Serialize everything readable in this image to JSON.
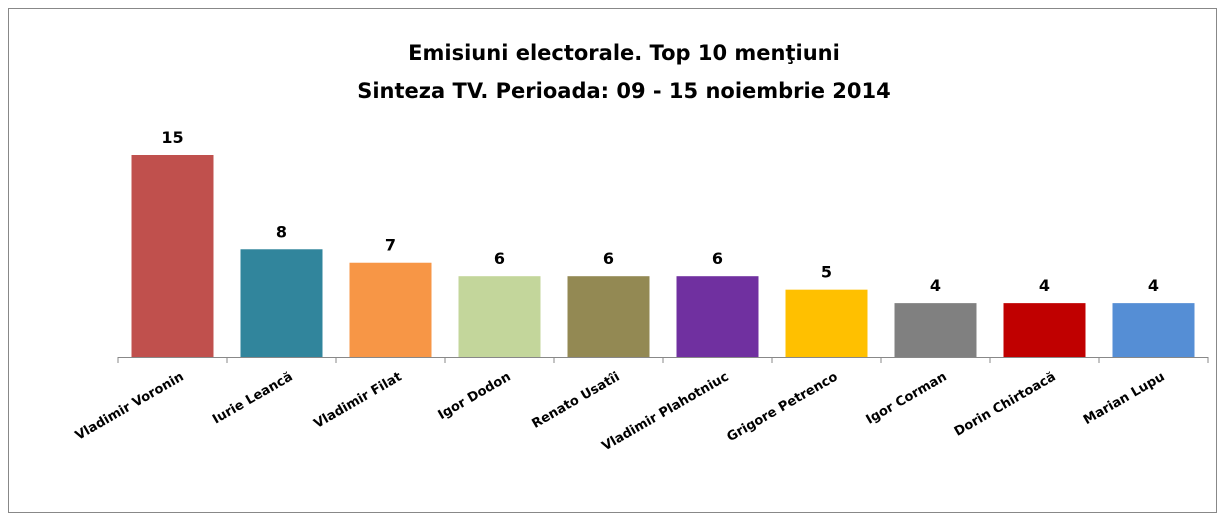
{
  "chart_data": {
    "type": "bar",
    "title": [
      "Emisiuni electorale. Top 10 menţiuni",
      "Sinteza TV. Perioada: 09 - 15 noiembrie 2014"
    ],
    "categories": [
      "Vladimir Voronin",
      "Iurie Leancă",
      "Vladimir Filat",
      "Igor Dodon",
      "Renato Usatîi",
      "Vladimir Plahotniuc",
      "Grigore Petrenco",
      "Igor Corman",
      "Dorin Chirtoacă",
      "Marian Lupu"
    ],
    "values": [
      15,
      8,
      7,
      6,
      6,
      6,
      5,
      4,
      4,
      4
    ],
    "colors": [
      "#c0504d",
      "#31859c",
      "#f79646",
      "#c3d69b",
      "#938953",
      "#7030a0",
      "#ffc000",
      "#808080",
      "#c00000",
      "#558ed5"
    ]
  }
}
